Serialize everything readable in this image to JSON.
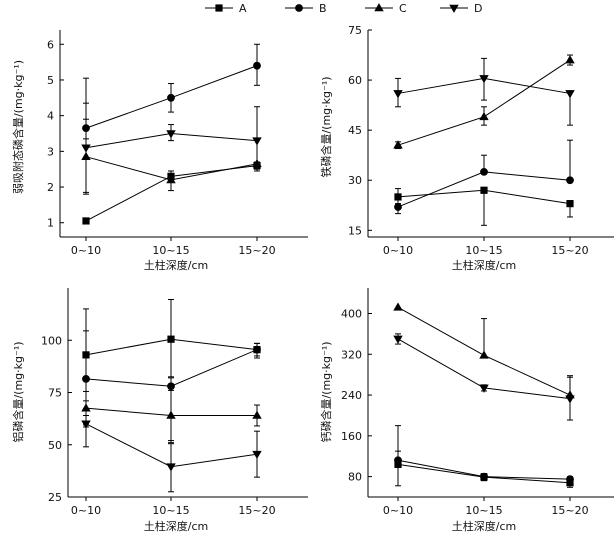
{
  "legend": [
    {
      "label": "A",
      "marker": "square"
    },
    {
      "label": "B",
      "marker": "circle"
    },
    {
      "label": "C",
      "marker": "triangle-up"
    },
    {
      "label": "D",
      "marker": "triangle-down"
    }
  ],
  "chart_data": [
    {
      "type": "line",
      "panel": "top-left",
      "ylabel": "弱吸附态磷含量/(mg·kg⁻¹)",
      "xlabel": "土柱深度/cm",
      "categories": [
        "0~10",
        "10~15",
        "15~20"
      ],
      "ylim": [
        0.6,
        6.4
      ],
      "yticks": [
        1,
        2,
        3,
        4,
        5,
        6
      ],
      "series": [
        {
          "name": "A",
          "values": [
            1.05,
            2.3,
            2.6
          ],
          "err_low": [
            0,
            0.15,
            0.1
          ],
          "err_high": [
            0,
            0.15,
            0.1
          ]
        },
        {
          "name": "B",
          "values": [
            3.65,
            4.5,
            5.4
          ],
          "err_low": [
            0.3,
            0.4,
            0.55
          ],
          "err_high": [
            1.4,
            0.4,
            0.6
          ]
        },
        {
          "name": "C",
          "values": [
            2.85,
            2.2,
            2.65
          ],
          "err_low": [
            1.05,
            0.3,
            0.2
          ],
          "err_high": [
            1.05,
            0.05,
            0.05
          ]
        },
        {
          "name": "D",
          "values": [
            3.1,
            3.5,
            3.3
          ],
          "err_low": [
            1.25,
            0.2,
            0.65
          ],
          "err_high": [
            1.25,
            0.25,
            0.95
          ]
        }
      ]
    },
    {
      "type": "line",
      "panel": "top-right",
      "ylabel": "铁磷含量/(mg·kg⁻¹)",
      "xlabel": "土柱深度/cm",
      "categories": [
        "0~10",
        "10~15",
        "15~20"
      ],
      "ylim": [
        13,
        75
      ],
      "yticks": [
        15,
        30,
        45,
        60,
        75
      ],
      "series": [
        {
          "name": "A",
          "values": [
            25,
            27,
            23
          ],
          "err_low": [
            2,
            10.5,
            4
          ],
          "err_high": [
            2.5,
            0,
            0
          ]
        },
        {
          "name": "B",
          "values": [
            22,
            32.5,
            30
          ],
          "err_low": [
            2,
            0,
            0
          ],
          "err_high": [
            0,
            5,
            12
          ]
        },
        {
          "name": "C",
          "values": [
            40.5,
            49,
            66
          ],
          "err_low": [
            1,
            2.5,
            1.5
          ],
          "err_high": [
            1,
            3,
            1.5
          ]
        },
        {
          "name": "D",
          "values": [
            56,
            60.5,
            56
          ],
          "err_low": [
            4,
            6.5,
            9.5
          ],
          "err_high": [
            4.5,
            6,
            0
          ]
        }
      ]
    },
    {
      "type": "line",
      "panel": "bottom-left",
      "ylabel": "铝磷含量/(mg·kg⁻¹)",
      "xlabel": "土柱深度/cm",
      "categories": [
        "0~10",
        "10~15",
        "15~20"
      ],
      "ylim": [
        25,
        125
      ],
      "yticks": [
        25,
        50,
        75,
        100
      ],
      "series": [
        {
          "name": "A",
          "values": [
            93,
            100.5,
            95.5
          ],
          "err_low": [
            22,
            18,
            4
          ],
          "err_high": [
            22,
            19,
            3
          ]
        },
        {
          "name": "B",
          "values": [
            81.5,
            78,
            95.5
          ],
          "err_low": [
            23,
            27,
            3
          ],
          "err_high": [
            23,
            4,
            3
          ]
        },
        {
          "name": "C",
          "values": [
            67.5,
            64,
            64
          ],
          "err_low": [
            8,
            12,
            5
          ],
          "err_high": [
            8,
            12,
            5
          ]
        },
        {
          "name": "D",
          "values": [
            60,
            39.5,
            45.5
          ],
          "err_low": [
            11,
            12,
            11
          ],
          "err_high": [
            4,
            11,
            11
          ]
        }
      ]
    },
    {
      "type": "line",
      "panel": "bottom-right",
      "ylabel": "钙磷含量/(mg·kg⁻¹)",
      "xlabel": "土柱深度/cm",
      "categories": [
        "0~10",
        "10~15",
        "15~20"
      ],
      "ylim": [
        40,
        450
      ],
      "yticks": [
        80,
        160,
        240,
        320,
        400
      ],
      "series": [
        {
          "name": "A",
          "values": [
            104,
            79,
            68
          ],
          "err_low": [
            42,
            7,
            9
          ],
          "err_high": [
            26,
            7,
            9
          ]
        },
        {
          "name": "B",
          "values": [
            112,
            80,
            75
          ],
          "err_low": [
            0,
            5,
            5
          ],
          "err_high": [
            68,
            5,
            5
          ]
        },
        {
          "name": "C",
          "values": [
            412,
            318,
            240
          ],
          "err_low": [
            0,
            0,
            0
          ],
          "err_high": [
            0,
            72,
            38
          ]
        },
        {
          "name": "D",
          "values": [
            350,
            254,
            233
          ],
          "err_low": [
            10,
            6,
            42
          ],
          "err_high": [
            10,
            6,
            42
          ]
        }
      ]
    }
  ]
}
